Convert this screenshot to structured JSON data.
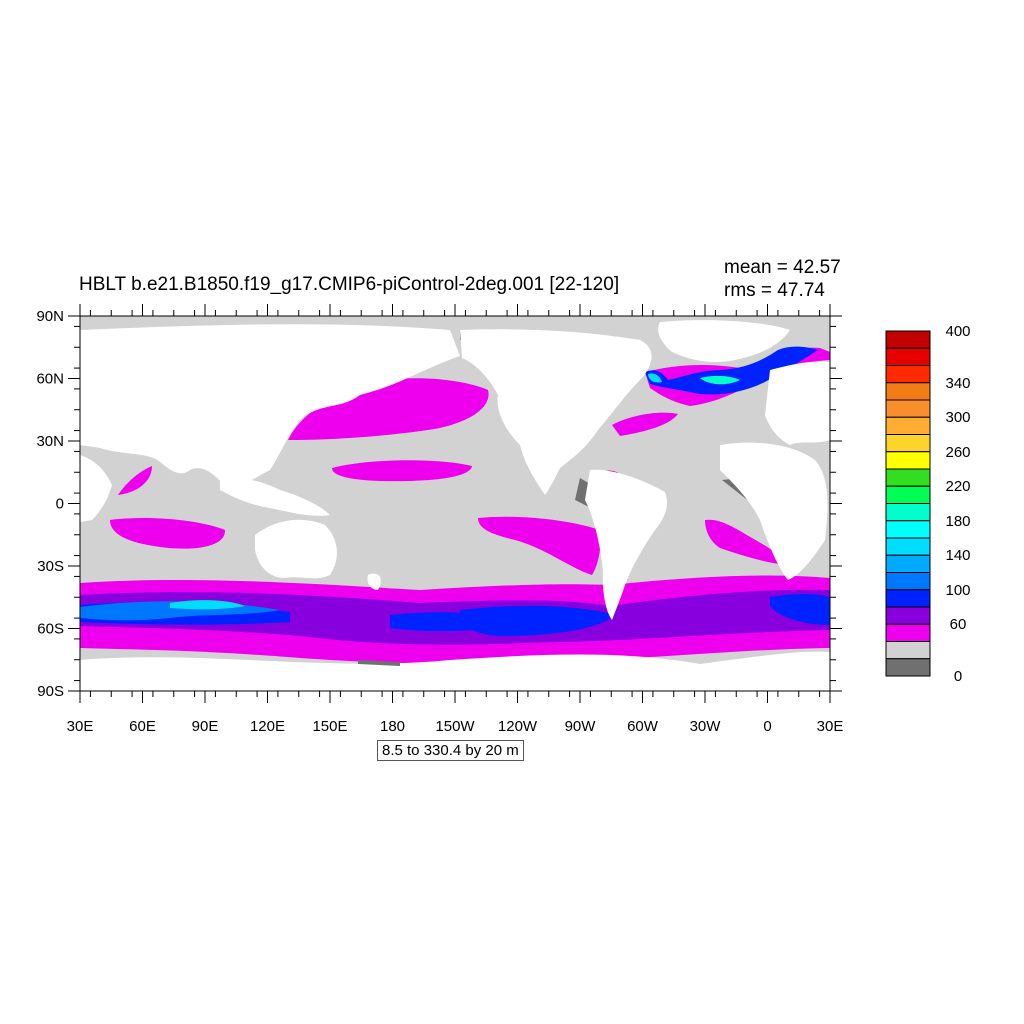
{
  "title": "HBLT b.e21.B1850.f19_g17.CMIP6-piControl-2deg.001 [22-120]",
  "stats": {
    "mean": "mean = 42.57",
    "rms": "rms = 47.74"
  },
  "contour_info": "8.5 to 330.4 by 20 m",
  "lat_labels": [
    "90N",
    "60N",
    "30N",
    "0",
    "30S",
    "60S",
    "90S"
  ],
  "lon_labels": [
    "30E",
    "60E",
    "90E",
    "120E",
    "150E",
    "180",
    "150W",
    "120W",
    "90W",
    "60W",
    "30W",
    "0",
    "30E"
  ],
  "colorbar": {
    "labels": [
      "400",
      "340",
      "300",
      "260",
      "220",
      "180",
      "140",
      "100",
      "60",
      "0"
    ],
    "colors": [
      "#c30000",
      "#e60000",
      "#ff2a00",
      "#f47c14",
      "#f98f2b",
      "#ffae33",
      "#ffd42a",
      "#ffff00",
      "#33dd1f",
      "#00ff55",
      "#00ffcc",
      "#00ffff",
      "#00ddff",
      "#00aaff",
      "#0077ff",
      "#0022ff",
      "#8800dd",
      "#ee00ee",
      "#d2d2d2",
      "#707070"
    ]
  },
  "colors": {
    "land": "#ffffff",
    "ocean_base": "#d2d2d2",
    "shallow": "#707070",
    "c60": "#ee00ee",
    "c80": "#8800dd",
    "c100": "#0022ff",
    "c120": "#0077ff",
    "c140": "#00ddff"
  }
}
